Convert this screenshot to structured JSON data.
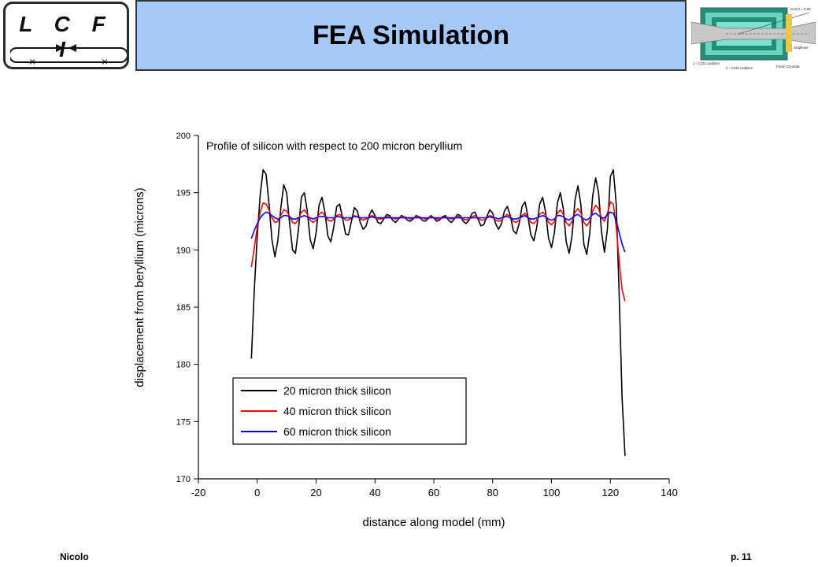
{
  "header": {
    "logo_text": "L C F I",
    "title": "FEA Simulation"
  },
  "inset_diagram": {
    "labels": [
      "Cos θ = 0.96",
      "Striplines",
      "1 - CCD Ladders",
      "2 - CCD Ladders",
      "Foam Cryostat"
    ]
  },
  "footer": {
    "author": "Nicolo",
    "page": "p. 11"
  },
  "chart_data": {
    "type": "line",
    "annotation": "Profile of silicon with respect to 200 micron beryllium",
    "xlabel": "distance along model (mm)",
    "ylabel": "displacement from beryllium (microns)",
    "xlim": [
      -20,
      140
    ],
    "ylim": [
      170,
      200
    ],
    "xticks": [
      -20,
      0,
      20,
      40,
      60,
      80,
      100,
      120,
      140
    ],
    "yticks": [
      170,
      175,
      180,
      185,
      190,
      195,
      200
    ],
    "legend_position": "lower-center",
    "series": [
      {
        "name": "20 micron thick silicon",
        "color": "#000000",
        "x": [
          -2,
          -1,
          0,
          1,
          2,
          3,
          4,
          5,
          6,
          7,
          8,
          9,
          10,
          11,
          12,
          13,
          14,
          15,
          16,
          17,
          18,
          19,
          20,
          21,
          22,
          23,
          24,
          25,
          26,
          27,
          28,
          29,
          30,
          31,
          32,
          33,
          34,
          35,
          36,
          37,
          38,
          39,
          40,
          41,
          42,
          43,
          44,
          45,
          46,
          47,
          48,
          49,
          50,
          51,
          52,
          53,
          54,
          55,
          56,
          57,
          58,
          59,
          60,
          61,
          62,
          63,
          64,
          65,
          66,
          67,
          68,
          69,
          70,
          71,
          72,
          73,
          74,
          75,
          76,
          77,
          78,
          79,
          80,
          81,
          82,
          83,
          84,
          85,
          86,
          87,
          88,
          89,
          90,
          91,
          92,
          93,
          94,
          95,
          96,
          97,
          98,
          99,
          100,
          101,
          102,
          103,
          104,
          105,
          106,
          107,
          108,
          109,
          110,
          111,
          112,
          113,
          114,
          115,
          116,
          117,
          118,
          119,
          120,
          121,
          122,
          123,
          124,
          125
        ],
        "y": [
          180.5,
          186.5,
          191.3,
          194.8,
          197.0,
          196.6,
          194.0,
          190.9,
          189.4,
          190.8,
          193.6,
          195.7,
          195.0,
          192.3,
          190.0,
          189.7,
          191.8,
          194.6,
          195.0,
          193.4,
          190.9,
          190.1,
          191.5,
          193.9,
          194.6,
          193.3,
          191.2,
          190.7,
          192.0,
          193.8,
          194.0,
          192.8,
          191.4,
          191.3,
          192.5,
          193.7,
          193.4,
          192.4,
          191.8,
          192.1,
          193.0,
          193.5,
          193.0,
          192.4,
          192.3,
          192.7,
          193.1,
          193.0,
          192.6,
          192.4,
          192.7,
          193.0,
          192.9,
          192.6,
          192.5,
          192.7,
          193.0,
          192.9,
          192.6,
          192.5,
          192.7,
          193.0,
          192.8,
          192.5,
          192.6,
          192.9,
          193.0,
          192.6,
          192.4,
          192.7,
          193.1,
          193.0,
          192.5,
          192.3,
          192.6,
          193.2,
          193.3,
          192.7,
          192.1,
          192.2,
          192.9,
          193.5,
          193.2,
          192.3,
          191.8,
          192.3,
          193.4,
          193.8,
          193.0,
          191.7,
          191.4,
          192.3,
          193.8,
          194.2,
          192.9,
          191.3,
          190.8,
          192.0,
          194.0,
          194.6,
          193.3,
          191.0,
          190.2,
          191.5,
          194.1,
          195.0,
          193.6,
          190.7,
          189.7,
          191.3,
          194.4,
          195.6,
          193.9,
          190.5,
          189.6,
          191.5,
          194.7,
          196.3,
          195.0,
          191.6,
          189.8,
          191.8,
          196.4,
          197.0,
          194.0,
          186.0,
          177.0,
          172.0
        ]
      },
      {
        "name": "40 micron thick silicon",
        "color": "#ff0000",
        "x": [
          -2,
          -1,
          0,
          1,
          2,
          3,
          4,
          5,
          6,
          7,
          8,
          9,
          10,
          11,
          12,
          13,
          14,
          15,
          16,
          17,
          18,
          19,
          20,
          21,
          22,
          23,
          24,
          25,
          26,
          27,
          28,
          29,
          30,
          31,
          32,
          33,
          34,
          35,
          36,
          37,
          38,
          39,
          40,
          41,
          42,
          43,
          44,
          45,
          46,
          47,
          48,
          49,
          50,
          51,
          52,
          53,
          54,
          55,
          56,
          57,
          58,
          59,
          60,
          61,
          62,
          63,
          64,
          65,
          66,
          67,
          68,
          69,
          70,
          71,
          72,
          73,
          74,
          75,
          76,
          77,
          78,
          79,
          80,
          81,
          82,
          83,
          84,
          85,
          86,
          87,
          88,
          89,
          90,
          91,
          92,
          93,
          94,
          95,
          96,
          97,
          98,
          99,
          100,
          101,
          102,
          103,
          104,
          105,
          106,
          107,
          108,
          109,
          110,
          111,
          112,
          113,
          114,
          115,
          116,
          117,
          118,
          119,
          120,
          121,
          122,
          123,
          124,
          125
        ],
        "y": [
          188.5,
          190.2,
          192.0,
          193.3,
          194.1,
          194.0,
          193.5,
          192.8,
          192.4,
          192.5,
          193.0,
          193.5,
          193.4,
          192.9,
          192.4,
          192.3,
          192.7,
          193.3,
          193.5,
          193.1,
          192.6,
          192.4,
          192.6,
          193.1,
          193.3,
          193.0,
          192.6,
          192.5,
          192.7,
          193.0,
          193.1,
          192.9,
          192.6,
          192.6,
          192.8,
          193.0,
          192.9,
          192.7,
          192.6,
          192.7,
          192.9,
          193.0,
          192.9,
          192.7,
          192.7,
          192.8,
          192.9,
          192.9,
          192.8,
          192.7,
          192.8,
          192.9,
          192.9,
          192.8,
          192.7,
          192.8,
          192.9,
          192.9,
          192.8,
          192.7,
          192.8,
          192.9,
          192.8,
          192.7,
          192.7,
          192.8,
          192.9,
          192.8,
          192.7,
          192.8,
          192.9,
          192.9,
          192.7,
          192.6,
          192.7,
          192.9,
          193.0,
          192.8,
          192.6,
          192.6,
          192.8,
          193.0,
          192.9,
          192.6,
          192.5,
          192.6,
          192.9,
          193.1,
          192.9,
          192.5,
          192.4,
          192.6,
          193.0,
          193.2,
          192.9,
          192.4,
          192.3,
          192.6,
          193.1,
          193.3,
          193.0,
          192.4,
          192.2,
          192.5,
          193.2,
          193.5,
          193.1,
          192.4,
          192.1,
          192.5,
          193.3,
          193.6,
          193.2,
          192.4,
          192.1,
          192.5,
          193.4,
          193.9,
          193.6,
          192.8,
          192.5,
          193.2,
          194.2,
          194.0,
          192.0,
          189.0,
          186.5,
          185.5
        ]
      },
      {
        "name": "60 micron thick silicon",
        "color": "#0000ff",
        "x": [
          -2,
          -1,
          0,
          1,
          2,
          3,
          4,
          5,
          6,
          7,
          8,
          9,
          10,
          11,
          12,
          13,
          14,
          15,
          16,
          17,
          18,
          19,
          20,
          21,
          22,
          23,
          24,
          25,
          26,
          27,
          28,
          29,
          30,
          31,
          32,
          33,
          34,
          35,
          36,
          37,
          38,
          39,
          40,
          41,
          42,
          43,
          44,
          45,
          46,
          47,
          48,
          49,
          50,
          51,
          52,
          53,
          54,
          55,
          56,
          57,
          58,
          59,
          60,
          61,
          62,
          63,
          64,
          65,
          66,
          67,
          68,
          69,
          70,
          71,
          72,
          73,
          74,
          75,
          76,
          77,
          78,
          79,
          80,
          81,
          82,
          83,
          84,
          85,
          86,
          87,
          88,
          89,
          90,
          91,
          92,
          93,
          94,
          95,
          96,
          97,
          98,
          99,
          100,
          101,
          102,
          103,
          104,
          105,
          106,
          107,
          108,
          109,
          110,
          111,
          112,
          113,
          114,
          115,
          116,
          117,
          118,
          119,
          120,
          121,
          122,
          123,
          124,
          125
        ],
        "y": [
          191.0,
          191.7,
          192.3,
          192.8,
          193.1,
          193.3,
          193.2,
          193.0,
          192.8,
          192.7,
          192.8,
          193.0,
          193.0,
          192.9,
          192.7,
          192.7,
          192.8,
          192.9,
          193.0,
          192.9,
          192.8,
          192.7,
          192.8,
          192.9,
          192.9,
          192.9,
          192.8,
          192.8,
          192.8,
          192.9,
          192.9,
          192.8,
          192.8,
          192.8,
          192.8,
          192.9,
          192.9,
          192.8,
          192.8,
          192.8,
          192.8,
          192.9,
          192.8,
          192.8,
          192.8,
          192.8,
          192.8,
          192.8,
          192.8,
          192.8,
          192.8,
          192.8,
          192.8,
          192.8,
          192.8,
          192.8,
          192.8,
          192.8,
          192.8,
          192.8,
          192.8,
          192.8,
          192.8,
          192.8,
          192.8,
          192.8,
          192.8,
          192.8,
          192.8,
          192.8,
          192.8,
          192.8,
          192.8,
          192.8,
          192.8,
          192.8,
          192.8,
          192.8,
          192.8,
          192.8,
          192.8,
          192.9,
          192.8,
          192.8,
          192.7,
          192.8,
          192.9,
          192.9,
          192.8,
          192.7,
          192.7,
          192.8,
          192.9,
          193.0,
          192.8,
          192.7,
          192.7,
          192.8,
          192.9,
          193.0,
          192.9,
          192.7,
          192.6,
          192.7,
          193.0,
          193.0,
          192.9,
          192.7,
          192.6,
          192.8,
          193.0,
          193.1,
          192.9,
          192.7,
          192.6,
          192.8,
          193.1,
          193.2,
          193.0,
          192.8,
          192.8,
          193.1,
          193.3,
          193.2,
          192.6,
          191.5,
          190.5,
          189.8
        ]
      }
    ]
  }
}
